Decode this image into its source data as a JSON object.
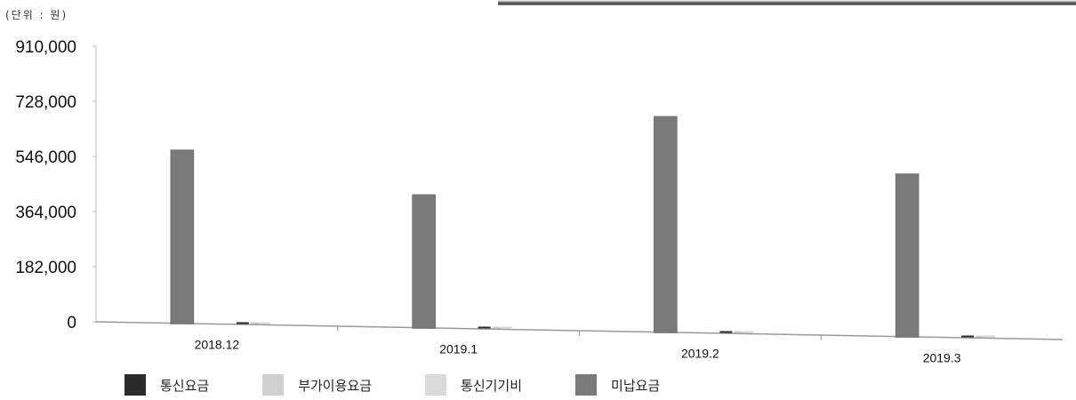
{
  "unit_label": "(단위 : 원)",
  "chart_data": {
    "type": "bar",
    "categories": [
      "2018.12",
      "2019.1",
      "2019.2",
      "2019.3"
    ],
    "series": [
      {
        "name": "통신요금",
        "values": [
          0,
          0,
          0,
          0
        ]
      },
      {
        "name": "부가이용요금",
        "values": [
          0,
          0,
          0,
          0
        ]
      },
      {
        "name": "통신기기비",
        "values": [
          0,
          0,
          0,
          0
        ]
      },
      {
        "name": "미납요금",
        "values": [
          575000,
          442000,
          715000,
          540000
        ]
      }
    ],
    "y_ticks": [
      "910,000",
      "728,000",
      "546,000",
      "364,000",
      "182,000",
      "0"
    ],
    "ylim": [
      0,
      910000
    ],
    "grid": false,
    "legend_position": "bottom",
    "colors": {
      "통신요금": "#2b2b2b",
      "부가이용요금": "#d0d0d0",
      "통신기기비": "#dadada",
      "미납요금": "#7a7a7a"
    }
  }
}
